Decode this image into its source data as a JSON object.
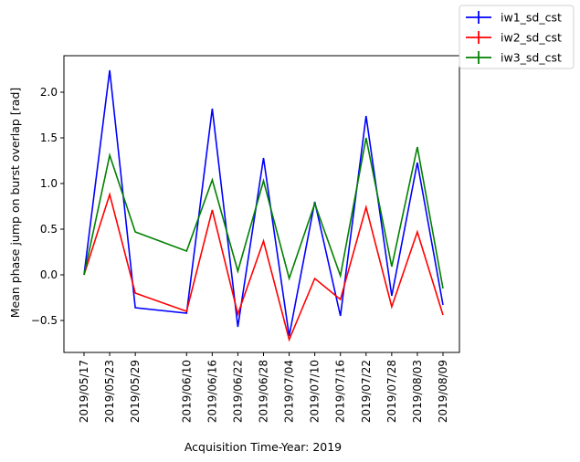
{
  "chart_data": {
    "type": "line",
    "title": "",
    "xlabel": "Acquisition Time-Year: 2019",
    "ylabel": "Mean phase jump on burst overlap [rad]",
    "ylim": [
      -0.85,
      2.4
    ],
    "yticks": [
      -0.5,
      0.0,
      0.5,
      1.0,
      1.5,
      2.0
    ],
    "ytick_labels": [
      "−0.5",
      "0.0",
      "0.5",
      "1.0",
      "1.5",
      "2.0"
    ],
    "xticks": [
      "2019/05/17",
      "2019/05/23",
      "2019/05/29",
      "2019/06/10",
      "2019/06/16",
      "2019/06/22",
      "2019/06/28",
      "2019/07/04",
      "2019/07/10",
      "2019/07/16",
      "2019/07/22",
      "2019/07/28",
      "2019/08/03",
      "2019/08/09"
    ],
    "legend_position": "outside top-right",
    "grid": false,
    "series": [
      {
        "name": "iw1_sd_cst",
        "color": "#0000ff",
        "x": [
          "2019/05/17",
          "2019/05/23",
          "2019/05/29",
          "2019/06/10",
          "2019/06/16",
          "2019/06/22",
          "2019/06/28",
          "2019/07/04",
          "2019/07/10",
          "2019/07/16",
          "2019/07/22",
          "2019/07/28",
          "2019/08/03",
          "2019/08/09"
        ],
        "values": [
          0.0,
          2.24,
          -0.36,
          -0.42,
          1.82,
          -0.57,
          1.28,
          -0.67,
          0.8,
          -0.45,
          1.74,
          -0.23,
          1.23,
          -0.33
        ]
      },
      {
        "name": "iw2_sd_cst",
        "color": "#ff0000",
        "x": [
          "2019/05/17",
          "2019/05/23",
          "2019/05/29",
          "2019/06/10",
          "2019/06/16",
          "2019/06/22",
          "2019/06/28",
          "2019/07/04",
          "2019/07/10",
          "2019/07/16",
          "2019/07/22",
          "2019/07/28",
          "2019/08/03",
          "2019/08/09"
        ],
        "values": [
          0.0,
          0.88,
          -0.2,
          -0.4,
          0.71,
          -0.43,
          0.37,
          -0.71,
          -0.04,
          -0.27,
          0.74,
          -0.35,
          0.47,
          -0.44
        ]
      },
      {
        "name": "iw3_sd_cst",
        "color": "#008000",
        "x": [
          "2019/05/17",
          "2019/05/23",
          "2019/05/29",
          "2019/06/10",
          "2019/06/16",
          "2019/06/22",
          "2019/06/28",
          "2019/07/04",
          "2019/07/10",
          "2019/07/16",
          "2019/07/22",
          "2019/07/28",
          "2019/08/03",
          "2019/08/09"
        ],
        "values": [
          0.0,
          1.31,
          0.47,
          0.26,
          1.04,
          0.04,
          1.03,
          -0.04,
          0.78,
          -0.01,
          1.5,
          0.09,
          1.4,
          -0.15
        ]
      }
    ]
  }
}
